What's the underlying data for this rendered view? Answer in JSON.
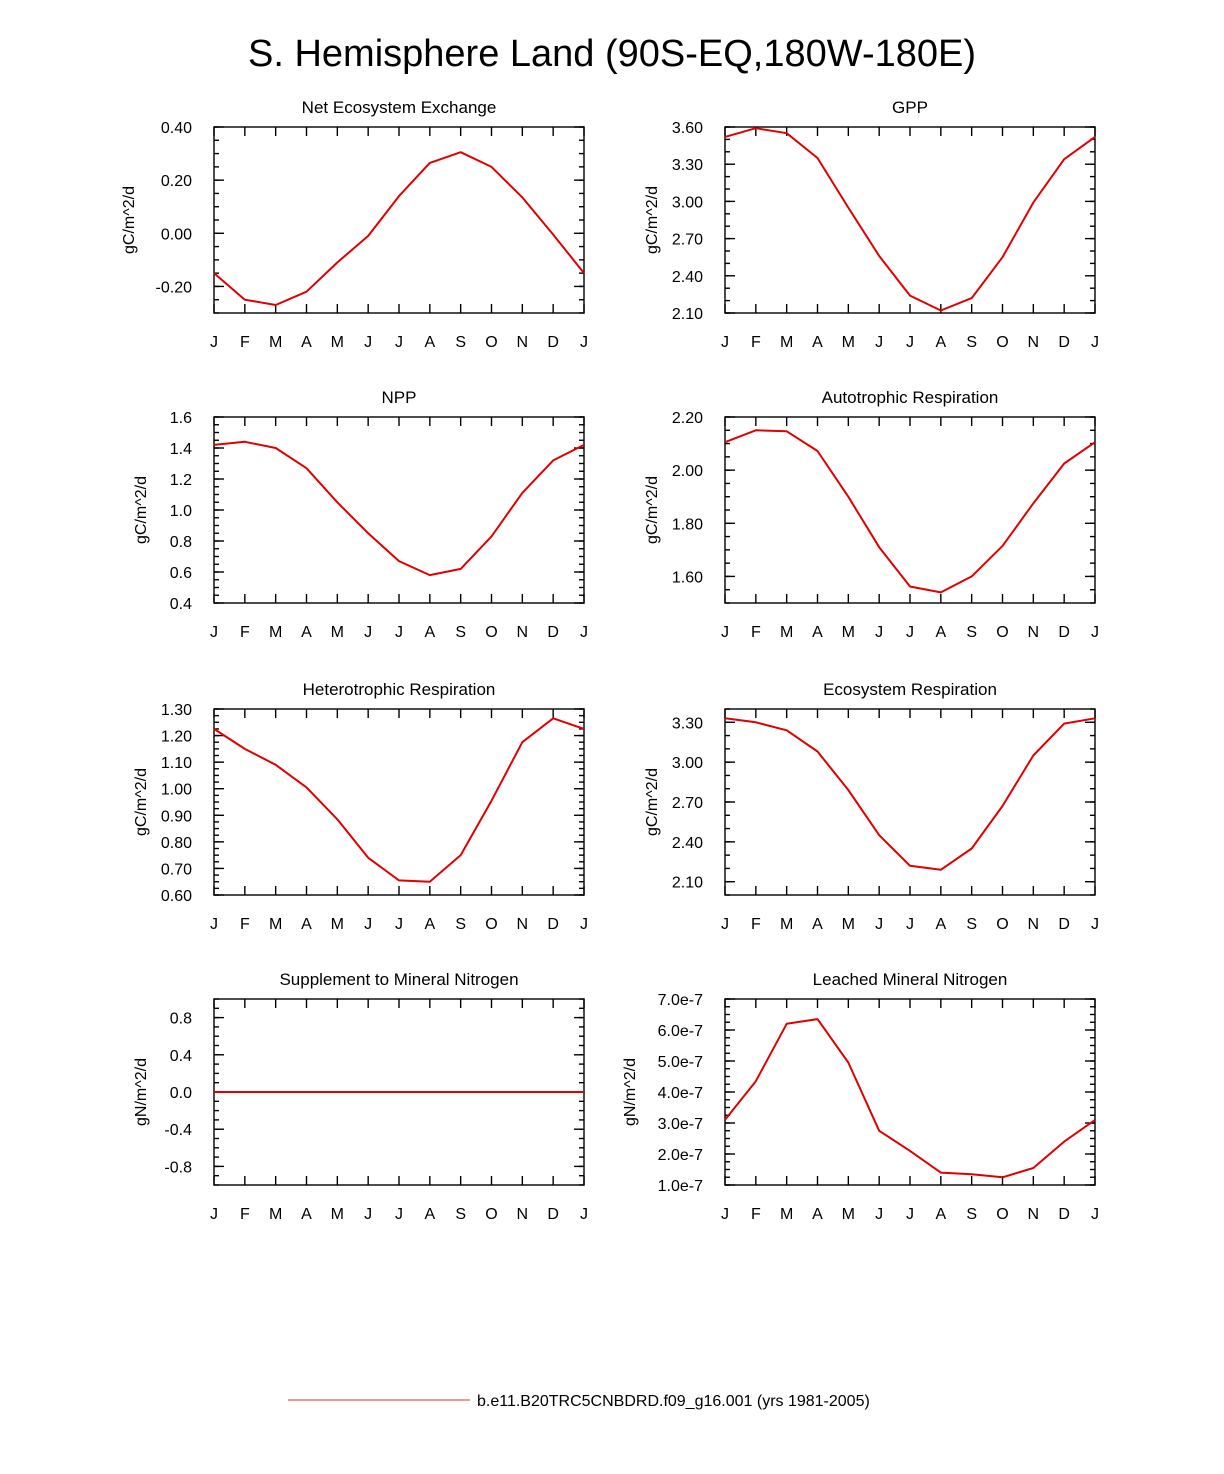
{
  "page": {
    "title": "S. Hemisphere Land (90S-EQ,180W-180E)"
  },
  "legend": {
    "label": "b.e11.B20TRC5CNBDRD.f09_g16.001 (yrs 1981-2005)",
    "color": "#e8595f"
  },
  "line_color": "#e00000",
  "chart_data": [
    {
      "type": "line",
      "title": "Net Ecosystem Exchange",
      "ylabel": "gC/m^2/d",
      "categories": [
        "J",
        "F",
        "M",
        "A",
        "M",
        "J",
        "J",
        "A",
        "S",
        "O",
        "N",
        "D",
        "J"
      ],
      "values": [
        -0.15,
        -0.25,
        -0.27,
        -0.22,
        -0.11,
        -0.01,
        0.14,
        0.265,
        0.305,
        0.25,
        0.135,
        -0.005,
        -0.15
      ],
      "ylim": [
        -0.3,
        0.4
      ],
      "yticks": [
        -0.2,
        0.0,
        0.2,
        0.4
      ],
      "ytick_labels": [
        "-0.20",
        "0.00",
        "0.20",
        "0.40"
      ],
      "y_minor_step": 0.05
    },
    {
      "type": "line",
      "title": "GPP",
      "ylabel": "gC/m^2/d",
      "categories": [
        "J",
        "F",
        "M",
        "A",
        "M",
        "J",
        "J",
        "A",
        "S",
        "O",
        "N",
        "D",
        "J"
      ],
      "values": [
        3.52,
        3.59,
        3.55,
        3.35,
        2.95,
        2.56,
        2.24,
        2.12,
        2.22,
        2.55,
        2.99,
        3.34,
        3.52
      ],
      "ylim": [
        2.1,
        3.6
      ],
      "yticks": [
        2.1,
        2.4,
        2.7,
        3.0,
        3.3,
        3.6
      ],
      "ytick_labels": [
        "2.10",
        "2.40",
        "2.70",
        "3.00",
        "3.30",
        "3.60"
      ],
      "y_minor_step": 0.1
    },
    {
      "type": "line",
      "title": "NPP",
      "ylabel": "gC/m^2/d",
      "categories": [
        "J",
        "F",
        "M",
        "A",
        "M",
        "J",
        "J",
        "A",
        "S",
        "O",
        "N",
        "D",
        "J"
      ],
      "values": [
        1.42,
        1.44,
        1.4,
        1.27,
        1.05,
        0.85,
        0.67,
        0.58,
        0.62,
        0.83,
        1.11,
        1.32,
        1.42
      ],
      "ylim": [
        0.4,
        1.6
      ],
      "yticks": [
        0.4,
        0.6,
        0.8,
        1.0,
        1.2,
        1.4,
        1.6
      ],
      "ytick_labels": [
        "0.4",
        "0.6",
        "0.8",
        "1.0",
        "1.2",
        "1.4",
        "1.6"
      ],
      "y_minor_step": 0.05
    },
    {
      "type": "line",
      "title": "Autotrophic Respiration",
      "ylabel": "gC/m^2/d",
      "categories": [
        "J",
        "F",
        "M",
        "A",
        "M",
        "J",
        "J",
        "A",
        "S",
        "O",
        "N",
        "D",
        "J"
      ],
      "values": [
        2.105,
        2.15,
        2.146,
        2.072,
        1.9,
        1.71,
        1.562,
        1.54,
        1.6,
        1.715,
        1.875,
        2.025,
        2.105
      ],
      "ylim": [
        1.5,
        2.2
      ],
      "yticks": [
        1.6,
        1.8,
        2.0,
        2.2
      ],
      "ytick_labels": [
        "1.60",
        "1.80",
        "2.00",
        "2.20"
      ],
      "y_minor_step": 0.05
    },
    {
      "type": "line",
      "title": "Heterotrophic Respiration",
      "ylabel": "gC/m^2/d",
      "categories": [
        "J",
        "F",
        "M",
        "A",
        "M",
        "J",
        "J",
        "A",
        "S",
        "O",
        "N",
        "D",
        "J"
      ],
      "values": [
        1.225,
        1.15,
        1.09,
        1.005,
        0.885,
        0.74,
        0.655,
        0.65,
        0.75,
        0.955,
        1.175,
        1.265,
        1.225
      ],
      "ylim": [
        0.6,
        1.3
      ],
      "yticks": [
        0.6,
        0.7,
        0.8,
        0.9,
        1.0,
        1.1,
        1.2,
        1.3
      ],
      "ytick_labels": [
        "0.60",
        "0.70",
        "0.80",
        "0.90",
        "1.00",
        "1.10",
        "1.20",
        "1.30"
      ],
      "y_minor_step": 0.025
    },
    {
      "type": "line",
      "title": "Ecosystem Respiration",
      "ylabel": "gC/m^2/d",
      "categories": [
        "J",
        "F",
        "M",
        "A",
        "M",
        "J",
        "J",
        "A",
        "S",
        "O",
        "N",
        "D",
        "J"
      ],
      "values": [
        3.33,
        3.3,
        3.24,
        3.08,
        2.79,
        2.45,
        2.22,
        2.19,
        2.35,
        2.67,
        3.05,
        3.29,
        3.33
      ],
      "ylim": [
        2.0,
        3.4
      ],
      "yticks": [
        2.1,
        2.4,
        2.7,
        3.0,
        3.3
      ],
      "ytick_labels": [
        "2.10",
        "2.40",
        "2.70",
        "3.00",
        "3.30"
      ],
      "y_minor_step": 0.1
    },
    {
      "type": "line",
      "title": "Supplement to Mineral Nitrogen",
      "ylabel": "gN/m^2/d",
      "categories": [
        "J",
        "F",
        "M",
        "A",
        "M",
        "J",
        "J",
        "A",
        "S",
        "O",
        "N",
        "D",
        "J"
      ],
      "values": [
        0,
        0,
        0,
        0,
        0,
        0,
        0,
        0,
        0,
        0,
        0,
        0,
        0
      ],
      "ylim": [
        -1.0,
        1.0
      ],
      "yticks": [
        -0.8,
        -0.4,
        0.0,
        0.4,
        0.8
      ],
      "ytick_labels": [
        "-0.8",
        "-0.4",
        "0.0",
        "0.4",
        "0.8"
      ],
      "y_minor_step": 0.1
    },
    {
      "type": "line",
      "title": "Leached Mineral Nitrogen",
      "ylabel": "gN/m^2/d",
      "categories": [
        "J",
        "F",
        "M",
        "A",
        "M",
        "J",
        "J",
        "A",
        "S",
        "O",
        "N",
        "D",
        "J"
      ],
      "values": [
        3.1e-07,
        4.35e-07,
        6.2e-07,
        6.35e-07,
        4.95e-07,
        2.75e-07,
        2.1e-07,
        1.4e-07,
        1.35e-07,
        1.25e-07,
        1.55e-07,
        2.4e-07,
        3.1e-07
      ],
      "ylim": [
        1e-07,
        7e-07
      ],
      "yticks": [
        1e-07,
        2e-07,
        3e-07,
        4e-07,
        5e-07,
        6e-07,
        7e-07
      ],
      "ytick_labels": [
        "1.0e-7",
        "2.0e-7",
        "3.0e-7",
        "4.0e-7",
        "5.0e-7",
        "6.0e-7",
        "7.0e-7"
      ],
      "y_minor_step": 2.5e-08
    }
  ]
}
